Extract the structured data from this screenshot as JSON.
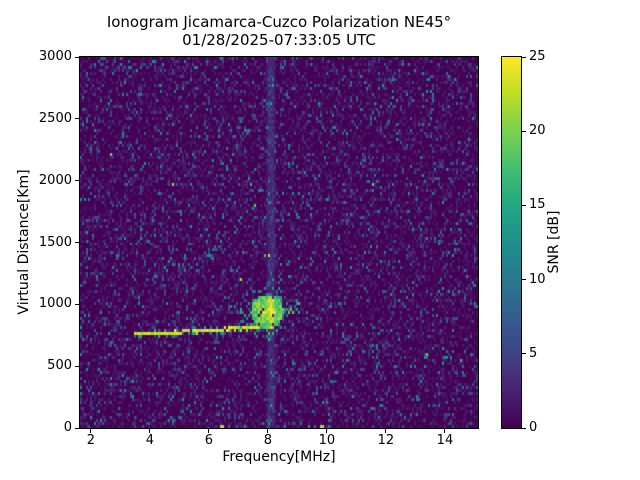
{
  "chart_data": {
    "type": "heatmap",
    "title": "Ionogram Jicamarca-Cuzco Polarization NE45°",
    "subtitle": "01/28/2025-07:33:05 UTC",
    "xlabel": "Frequency[MHz]",
    "ylabel": "Virtual Distance[Km]",
    "colorbar_label": "SNR [dB]",
    "colormap": "viridis",
    "colors": {
      "snr_min": "#440154",
      "snr_max": "#fde725"
    },
    "xlim": [
      1.63,
      15.12
    ],
    "ylim": [
      0,
      3000
    ],
    "snr_range": [
      0,
      25
    ],
    "x_ticks": [
      2,
      4,
      6,
      8,
      10,
      12,
      14
    ],
    "y_ticks": [
      0,
      500,
      1000,
      1500,
      2000,
      2500,
      3000
    ],
    "colorbar_ticks": [
      0,
      5,
      10,
      15,
      20,
      25
    ],
    "legend": "none",
    "grid": "off",
    "noise": {
      "seed": 20250128,
      "grid": [
        199,
        124
      ],
      "hot_pixel_prob": 0.0006
    },
    "features": [
      {
        "id": "f-region-oblique-echo",
        "kind": "trace",
        "f": [
          3.45,
          7.7
        ],
        "d": [
          752,
          810
        ],
        "thickness_km": 28,
        "jitter_km": 7,
        "density": 0.96,
        "snr": [
          21,
          25
        ]
      },
      {
        "id": "spread-f-cluster",
        "kind": "blob",
        "center": [
          7.97,
          935
        ],
        "radius": [
          0.55,
          140
        ],
        "snr": [
          19,
          25
        ],
        "fringe_radius": 1.7,
        "fringe_density": 0.35,
        "fringe_snr": [
          7,
          16
        ]
      },
      {
        "id": "post-cluster-scatter",
        "kind": "scatter",
        "f": [
          8.45,
          9.1
        ],
        "d": [
          920,
          960
        ],
        "band_km": 120,
        "density": 0.35,
        "snr": [
          8,
          20
        ]
      },
      {
        "id": "second-hop-echo",
        "kind": "scatter",
        "f": [
          3.8,
          6.5
        ],
        "d": [
          1205,
          1445
        ],
        "band_km": 60,
        "density": 0.2,
        "snr": [
          5,
          13
        ]
      },
      {
        "id": "rfi-band",
        "kind": "vband",
        "f": 8.1,
        "halfwidth": [
          0.08,
          0.18
        ],
        "snr_add": [
          2.6,
          1.2
        ]
      },
      {
        "id": "bottom-hot-pixels",
        "kind": "points",
        "points": [
          [
            6.44,
            10,
            22
          ],
          [
            9.83,
            10,
            22
          ]
        ]
      }
    ]
  }
}
